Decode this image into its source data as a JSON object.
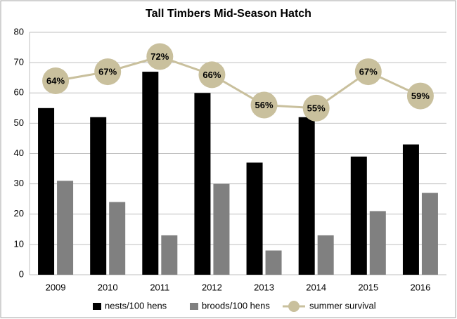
{
  "chart_data": {
    "type": "bar",
    "title": "Tall Timbers Mid-Season Hatch",
    "categories": [
      "2009",
      "2010",
      "2011",
      "2012",
      "2013",
      "2014",
      "2015",
      "2016"
    ],
    "series": [
      {
        "name": "nests/100 hens",
        "color": "#000000",
        "type": "bar",
        "values": [
          55,
          52,
          67,
          60,
          37,
          52,
          39,
          43
        ]
      },
      {
        "name": "broods/100 hens",
        "color": "#808080",
        "type": "bar",
        "values": [
          31,
          24,
          13,
          30,
          8,
          13,
          21,
          27
        ]
      },
      {
        "name": "summer survival",
        "color": "#c9c09d",
        "type": "line",
        "values": [
          64,
          67,
          72,
          66,
          56,
          55,
          67,
          59
        ],
        "value_labels": [
          "64%",
          "67%",
          "72%",
          "66%",
          "56%",
          "55%",
          "67%",
          "59%"
        ]
      }
    ],
    "ylim": [
      0,
      80
    ],
    "yticks": [
      0,
      10,
      20,
      30,
      40,
      50,
      60,
      70,
      80
    ],
    "grid": true,
    "legend": "bottom"
  }
}
